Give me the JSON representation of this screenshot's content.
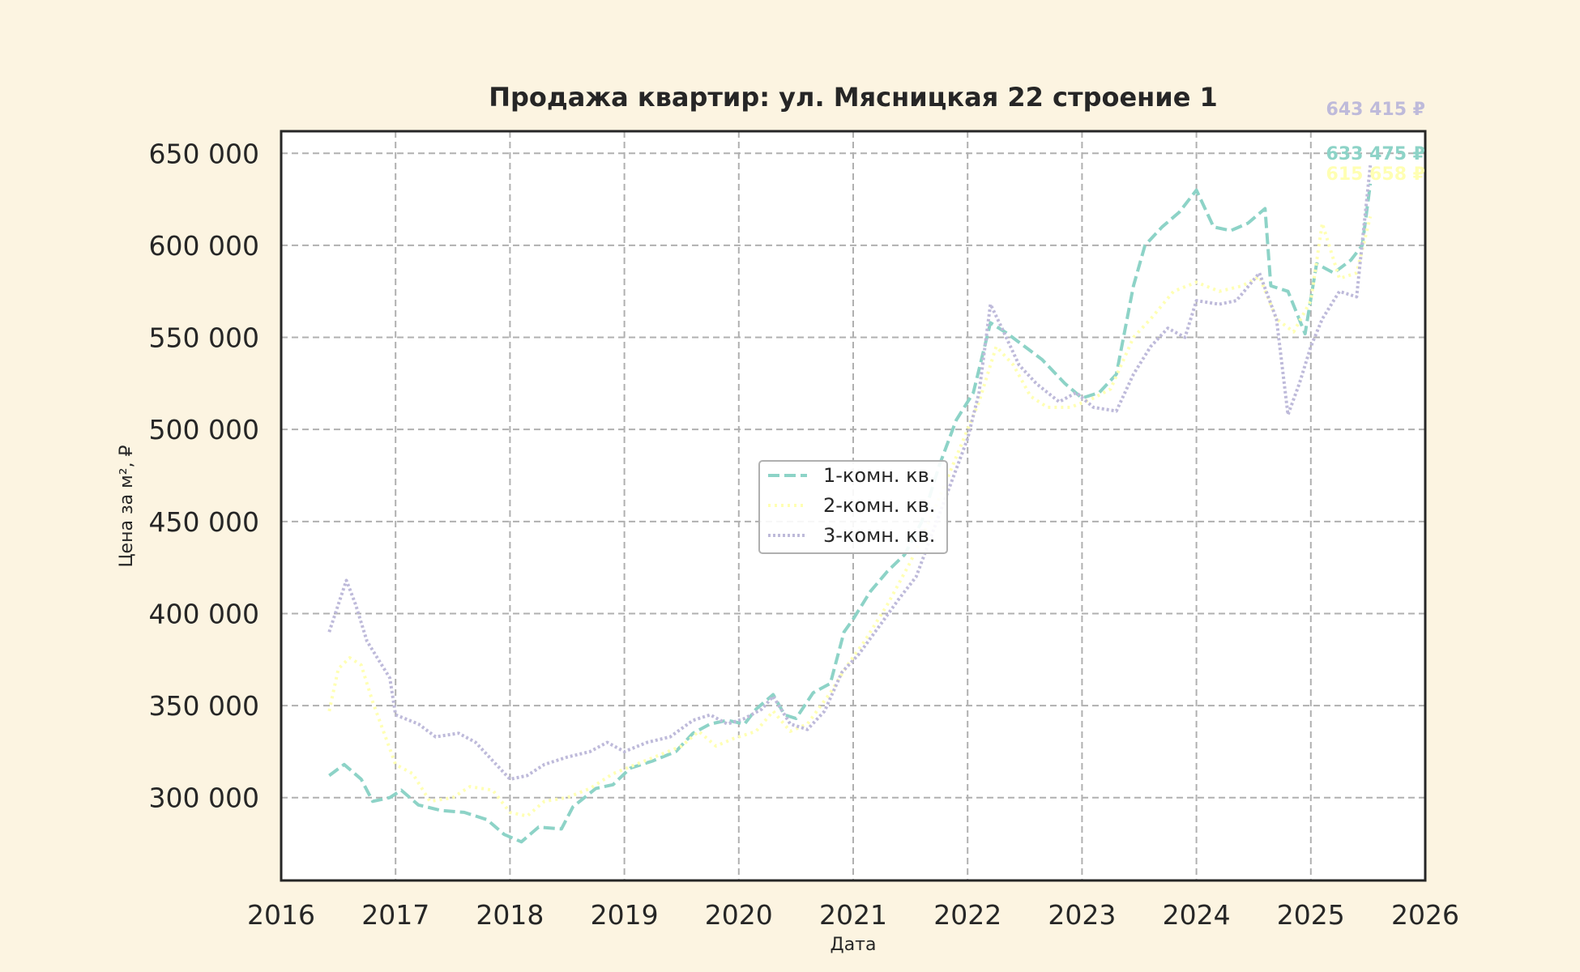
{
  "chart_data": {
    "type": "line",
    "title": "Продажа квартир: ул. Мясницкая 22 строение 1",
    "xlabel": "Дата",
    "ylabel": "Цена за м², ₽",
    "xlim": [
      2016.0,
      2026.0
    ],
    "ylim": [
      255000,
      662000
    ],
    "x_ticks": [
      "2016",
      "2017",
      "2018",
      "2019",
      "2020",
      "2021",
      "2022",
      "2023",
      "2024",
      "2025",
      "2026"
    ],
    "y_ticks": [
      {
        "value": 300000,
        "label": "300 000"
      },
      {
        "value": 350000,
        "label": "350 000"
      },
      {
        "value": 400000,
        "label": "400 000"
      },
      {
        "value": 450000,
        "label": "450 000"
      },
      {
        "value": 500000,
        "label": "500 000"
      },
      {
        "value": 550000,
        "label": "550 000"
      },
      {
        "value": 600000,
        "label": "600 000"
      },
      {
        "value": 650000,
        "label": "650 000"
      }
    ],
    "grid": true,
    "legend_position": "center",
    "series": [
      {
        "name": "1-комн. кв.",
        "color": "#8dd3c7",
        "dash": "14,6",
        "end_label": "633 475 ₽",
        "points": [
          [
            2016.42,
            312000
          ],
          [
            2016.55,
            318000
          ],
          [
            2016.7,
            310000
          ],
          [
            2016.8,
            298000
          ],
          [
            2016.95,
            300000
          ],
          [
            2017.05,
            304000
          ],
          [
            2017.2,
            296000
          ],
          [
            2017.4,
            293000
          ],
          [
            2017.6,
            292000
          ],
          [
            2017.8,
            288000
          ],
          [
            2017.95,
            280000
          ],
          [
            2018.1,
            276000
          ],
          [
            2018.25,
            284000
          ],
          [
            2018.45,
            283000
          ],
          [
            2018.55,
            295000
          ],
          [
            2018.75,
            305000
          ],
          [
            2018.9,
            307000
          ],
          [
            2019.05,
            316000
          ],
          [
            2019.25,
            320000
          ],
          [
            2019.45,
            325000
          ],
          [
            2019.6,
            335000
          ],
          [
            2019.75,
            340000
          ],
          [
            2019.9,
            342000
          ],
          [
            2020.05,
            340000
          ],
          [
            2020.15,
            348000
          ],
          [
            2020.3,
            356000
          ],
          [
            2020.4,
            345000
          ],
          [
            2020.5,
            343000
          ],
          [
            2020.65,
            357000
          ],
          [
            2020.8,
            362000
          ],
          [
            2020.92,
            390000
          ],
          [
            2021.0,
            397000
          ],
          [
            2021.15,
            412000
          ],
          [
            2021.3,
            423000
          ],
          [
            2021.45,
            432000
          ],
          [
            2021.6,
            450000
          ],
          [
            2021.75,
            480000
          ],
          [
            2021.9,
            505000
          ],
          [
            2022.05,
            520000
          ],
          [
            2022.2,
            558000
          ],
          [
            2022.35,
            552000
          ],
          [
            2022.5,
            545000
          ],
          [
            2022.65,
            538000
          ],
          [
            2022.85,
            525000
          ],
          [
            2023.0,
            517000
          ],
          [
            2023.15,
            520000
          ],
          [
            2023.3,
            530000
          ],
          [
            2023.45,
            578000
          ],
          [
            2023.55,
            600000
          ],
          [
            2023.7,
            610000
          ],
          [
            2023.85,
            618000
          ],
          [
            2024.0,
            630000
          ],
          [
            2024.15,
            610000
          ],
          [
            2024.3,
            608000
          ],
          [
            2024.45,
            612000
          ],
          [
            2024.6,
            620000
          ],
          [
            2024.65,
            578000
          ],
          [
            2024.8,
            575000
          ],
          [
            2024.95,
            552000
          ],
          [
            2025.05,
            590000
          ],
          [
            2025.2,
            585000
          ],
          [
            2025.35,
            592000
          ],
          [
            2025.45,
            600000
          ],
          [
            2025.52,
            633475
          ]
        ]
      },
      {
        "name": "2-комн. кв.",
        "color": "#ffffb3",
        "dash": "3,5",
        "end_label": "615 658 ₽",
        "points": [
          [
            2016.42,
            347000
          ],
          [
            2016.5,
            370000
          ],
          [
            2016.6,
            376000
          ],
          [
            2016.7,
            372000
          ],
          [
            2016.8,
            352000
          ],
          [
            2016.9,
            335000
          ],
          [
            2017.0,
            318000
          ],
          [
            2017.15,
            313000
          ],
          [
            2017.3,
            298000
          ],
          [
            2017.5,
            300000
          ],
          [
            2017.65,
            306000
          ],
          [
            2017.85,
            304000
          ],
          [
            2018.0,
            292000
          ],
          [
            2018.15,
            290000
          ],
          [
            2018.3,
            298000
          ],
          [
            2018.5,
            300000
          ],
          [
            2018.7,
            305000
          ],
          [
            2018.9,
            313000
          ],
          [
            2019.1,
            318000
          ],
          [
            2019.3,
            323000
          ],
          [
            2019.5,
            328000
          ],
          [
            2019.65,
            336000
          ],
          [
            2019.8,
            328000
          ],
          [
            2019.95,
            332000
          ],
          [
            2020.15,
            336000
          ],
          [
            2020.3,
            347000
          ],
          [
            2020.45,
            336000
          ],
          [
            2020.6,
            340000
          ],
          [
            2020.8,
            357000
          ],
          [
            2020.95,
            372000
          ],
          [
            2021.1,
            385000
          ],
          [
            2021.3,
            405000
          ],
          [
            2021.5,
            428000
          ],
          [
            2021.7,
            455000
          ],
          [
            2021.9,
            485000
          ],
          [
            2022.1,
            515000
          ],
          [
            2022.25,
            545000
          ],
          [
            2022.4,
            535000
          ],
          [
            2022.55,
            518000
          ],
          [
            2022.7,
            512000
          ],
          [
            2022.9,
            512000
          ],
          [
            2023.1,
            517000
          ],
          [
            2023.25,
            522000
          ],
          [
            2023.45,
            550000
          ],
          [
            2023.6,
            560000
          ],
          [
            2023.8,
            575000
          ],
          [
            2024.0,
            580000
          ],
          [
            2024.2,
            575000
          ],
          [
            2024.4,
            578000
          ],
          [
            2024.55,
            583000
          ],
          [
            2024.7,
            560000
          ],
          [
            2024.85,
            553000
          ],
          [
            2025.0,
            570000
          ],
          [
            2025.1,
            612000
          ],
          [
            2025.25,
            582000
          ],
          [
            2025.4,
            585000
          ],
          [
            2025.52,
            615658
          ]
        ]
      },
      {
        "name": "3-комн. кв.",
        "color": "#bebada",
        "dash": "3,3",
        "end_label": "643 415 ₽",
        "points": [
          [
            2016.42,
            390000
          ],
          [
            2016.5,
            405000
          ],
          [
            2016.57,
            418000
          ],
          [
            2016.65,
            405000
          ],
          [
            2016.75,
            385000
          ],
          [
            2016.85,
            375000
          ],
          [
            2016.95,
            365000
          ],
          [
            2017.0,
            345000
          ],
          [
            2017.2,
            340000
          ],
          [
            2017.35,
            333000
          ],
          [
            2017.55,
            335000
          ],
          [
            2017.7,
            330000
          ],
          [
            2017.85,
            320000
          ],
          [
            2018.0,
            310000
          ],
          [
            2018.15,
            312000
          ],
          [
            2018.3,
            318000
          ],
          [
            2018.5,
            322000
          ],
          [
            2018.7,
            325000
          ],
          [
            2018.85,
            330000
          ],
          [
            2019.0,
            325000
          ],
          [
            2019.2,
            330000
          ],
          [
            2019.4,
            333000
          ],
          [
            2019.6,
            342000
          ],
          [
            2019.75,
            345000
          ],
          [
            2019.9,
            340000
          ],
          [
            2020.05,
            343000
          ],
          [
            2020.2,
            348000
          ],
          [
            2020.3,
            355000
          ],
          [
            2020.45,
            340000
          ],
          [
            2020.6,
            337000
          ],
          [
            2020.75,
            347000
          ],
          [
            2020.9,
            368000
          ],
          [
            2021.05,
            378000
          ],
          [
            2021.25,
            395000
          ],
          [
            2021.4,
            408000
          ],
          [
            2021.55,
            420000
          ],
          [
            2021.7,
            445000
          ],
          [
            2021.85,
            470000
          ],
          [
            2022.0,
            495000
          ],
          [
            2022.1,
            520000
          ],
          [
            2022.2,
            568000
          ],
          [
            2022.3,
            555000
          ],
          [
            2022.45,
            535000
          ],
          [
            2022.6,
            525000
          ],
          [
            2022.8,
            515000
          ],
          [
            2022.95,
            520000
          ],
          [
            2023.1,
            512000
          ],
          [
            2023.3,
            510000
          ],
          [
            2023.45,
            530000
          ],
          [
            2023.6,
            545000
          ],
          [
            2023.75,
            555000
          ],
          [
            2023.9,
            550000
          ],
          [
            2024.0,
            570000
          ],
          [
            2024.2,
            568000
          ],
          [
            2024.35,
            570000
          ],
          [
            2024.55,
            585000
          ],
          [
            2024.7,
            560000
          ],
          [
            2024.8,
            508000
          ],
          [
            2024.9,
            525000
          ],
          [
            2025.0,
            545000
          ],
          [
            2025.1,
            560000
          ],
          [
            2025.25,
            575000
          ],
          [
            2025.4,
            572000
          ],
          [
            2025.52,
            643415
          ]
        ]
      }
    ]
  }
}
